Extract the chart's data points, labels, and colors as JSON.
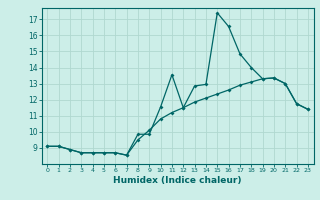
{
  "title": "",
  "xlabel": "Humidex (Indice chaleur)",
  "background_color": "#cceee8",
  "grid_color": "#b0d8d0",
  "line_color": "#006666",
  "xlim": [
    -0.5,
    23.5
  ],
  "ylim": [
    8.0,
    17.7
  ],
  "yticks": [
    9,
    10,
    11,
    12,
    13,
    14,
    15,
    16,
    17
  ],
  "xticks": [
    0,
    1,
    2,
    3,
    4,
    5,
    6,
    7,
    8,
    9,
    10,
    11,
    12,
    13,
    14,
    15,
    16,
    17,
    18,
    19,
    20,
    21,
    22,
    23
  ],
  "series1_x": [
    0,
    1,
    2,
    3,
    4,
    5,
    6,
    7,
    8,
    9,
    10,
    11,
    12,
    13,
    14,
    15,
    16,
    17,
    18,
    19,
    20,
    21,
    22,
    23
  ],
  "series1_y": [
    9.1,
    9.1,
    8.9,
    8.7,
    8.7,
    8.7,
    8.7,
    8.55,
    9.85,
    9.85,
    11.55,
    13.55,
    11.5,
    12.85,
    12.95,
    17.4,
    16.55,
    14.85,
    14.0,
    13.3,
    13.35,
    13.0,
    11.75,
    11.4
  ],
  "series2_x": [
    0,
    1,
    2,
    3,
    4,
    5,
    6,
    7,
    8,
    9,
    10,
    11,
    12,
    13,
    14,
    15,
    16,
    17,
    18,
    19,
    20,
    21,
    22,
    23
  ],
  "series2_y": [
    9.1,
    9.1,
    8.9,
    8.7,
    8.7,
    8.7,
    8.7,
    8.55,
    9.5,
    10.1,
    10.8,
    11.2,
    11.5,
    11.85,
    12.1,
    12.35,
    12.6,
    12.9,
    13.1,
    13.3,
    13.35,
    13.0,
    11.75,
    11.4
  ]
}
